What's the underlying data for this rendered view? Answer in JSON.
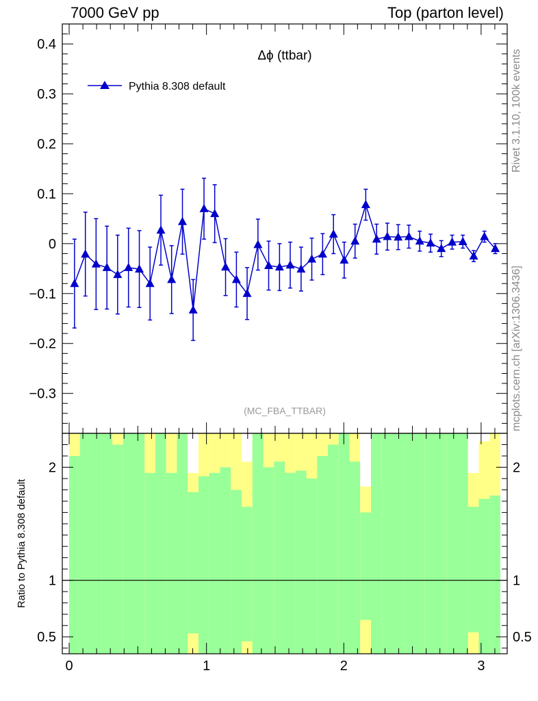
{
  "header": {
    "left": "7000 GeV pp",
    "right": "Top (parton level)"
  },
  "side": {
    "rivet": "Rivet 3.1.10,  100k events",
    "mcplots": "mcplots.cern.ch [arXiv:1306.3436]"
  },
  "chart_data": [
    {
      "type": "line",
      "title": "Δϕ (ttbar)",
      "annotation": "(MC_FBA_TTBAR)",
      "legend_position": "top-left",
      "ylim": [
        -0.38,
        0.44
      ],
      "xlim": [
        -0.05,
        3.19
      ],
      "yticks": [
        -0.3,
        -0.2,
        -0.1,
        0,
        0.1,
        0.2,
        0.3,
        0.4
      ],
      "ytick_labels": [
        "−0.3",
        "−0.2",
        "−0.1",
        "0",
        "0.1",
        "0.2",
        "0.3",
        "0.4"
      ],
      "color": "#0000cc",
      "series": [
        {
          "name": "Pythia 8.308 default",
          "x": [
            0.039,
            0.118,
            0.196,
            0.275,
            0.353,
            0.432,
            0.511,
            0.589,
            0.668,
            0.746,
            0.825,
            0.903,
            0.982,
            1.06,
            1.139,
            1.218,
            1.296,
            1.375,
            1.453,
            1.532,
            1.61,
            1.689,
            1.767,
            1.846,
            1.925,
            2.003,
            2.082,
            2.16,
            2.239,
            2.317,
            2.396,
            2.474,
            2.553,
            2.632,
            2.71,
            2.789,
            2.867,
            2.946,
            3.024,
            3.103
          ],
          "y": [
            -0.08,
            -0.021,
            -0.041,
            -0.048,
            -0.062,
            -0.048,
            -0.051,
            -0.08,
            0.027,
            -0.072,
            0.044,
            -0.133,
            0.07,
            0.06,
            -0.047,
            -0.072,
            -0.1,
            -0.002,
            -0.044,
            -0.047,
            -0.043,
            -0.051,
            -0.031,
            -0.021,
            0.019,
            -0.033,
            0.005,
            0.078,
            0.009,
            0.014,
            0.013,
            0.014,
            0.005,
            0.001,
            -0.01,
            0.003,
            0.004,
            -0.025,
            0.014,
            -0.01
          ],
          "yerr": [
            0.089,
            0.084,
            0.091,
            0.083,
            0.079,
            0.079,
            0.077,
            0.073,
            0.07,
            0.068,
            0.065,
            0.061,
            0.061,
            0.058,
            0.057,
            0.055,
            0.052,
            0.051,
            0.049,
            0.047,
            0.046,
            0.044,
            0.042,
            0.041,
            0.039,
            0.036,
            0.034,
            0.031,
            0.03,
            0.027,
            0.025,
            0.023,
            0.02,
            0.018,
            0.016,
            0.014,
            0.013,
            0.011,
            0.011,
            0.01
          ]
        }
      ]
    },
    {
      "type": "bar",
      "ylabel": "Ratio to Pythia 8.308 default",
      "ylim": [
        0.35,
        2.3
      ],
      "yticks": [
        0.5,
        1,
        2
      ],
      "ytick_labels": [
        "0.5",
        "1",
        "2"
      ],
      "xticks": [
        0,
        1,
        2,
        3
      ],
      "xtick_labels": [
        "0",
        "1",
        "2",
        "3"
      ],
      "reference": 1,
      "band_colors": {
        "inner": "#99ff99",
        "outer": "#ffff88"
      },
      "bins": [
        0.0,
        0.0785,
        0.157,
        0.2355,
        0.314,
        0.3925,
        0.471,
        0.5495,
        0.628,
        0.7065,
        0.785,
        0.8635,
        0.942,
        1.0205,
        1.099,
        1.1775,
        1.256,
        1.3345,
        1.413,
        1.4915,
        1.57,
        1.6485,
        1.727,
        1.8055,
        1.884,
        1.9625,
        2.041,
        2.1195,
        2.198,
        2.2765,
        2.355,
        2.4335,
        2.512,
        2.5905,
        2.669,
        2.7475,
        2.826,
        2.9045,
        2.983,
        3.0615,
        3.14
      ],
      "inner_lo": [
        0.35,
        0.35,
        0.35,
        0.35,
        0.35,
        0.35,
        0.35,
        0.35,
        0.35,
        0.35,
        0.35,
        0.35,
        0.35,
        0.35,
        0.35,
        0.35,
        0.35,
        0.35,
        0.35,
        0.35,
        0.35,
        0.35,
        0.35,
        0.35,
        0.35,
        0.35,
        0.35,
        0.35,
        0.35,
        0.35,
        0.35,
        0.35,
        0.35,
        0.35,
        0.35,
        0.35,
        0.35,
        0.35,
        0.35,
        0.35
      ],
      "inner_hi": [
        2.1,
        2.3,
        2.3,
        2.3,
        2.2,
        2.3,
        2.3,
        1.95,
        2.3,
        1.95,
        2.3,
        1.78,
        1.92,
        1.95,
        2.0,
        1.8,
        1.65,
        2.3,
        2.0,
        2.05,
        1.95,
        1.97,
        1.9,
        2.1,
        2.2,
        2.3,
        2.05,
        1.6,
        2.3,
        2.3,
        2.3,
        2.3,
        2.3,
        2.3,
        2.3,
        2.3,
        2.3,
        1.65,
        1.72,
        1.75
      ],
      "outer_lo": [
        0.35,
        0.35,
        0.35,
        0.35,
        0.35,
        0.35,
        0.35,
        0.35,
        0.35,
        0.35,
        0.35,
        0.35,
        0.35,
        0.35,
        0.35,
        0.35,
        0.35,
        0.35,
        0.35,
        0.35,
        0.35,
        0.35,
        0.35,
        0.35,
        0.35,
        0.35,
        0.35,
        0.35,
        0.35,
        0.35,
        0.35,
        0.35,
        0.35,
        0.35,
        0.35,
        0.35,
        0.35,
        0.35,
        0.35,
        0.35
      ],
      "outer_hi": [
        2.3,
        2.3,
        2.3,
        2.3,
        2.3,
        2.3,
        2.3,
        2.3,
        2.3,
        2.3,
        2.3,
        1.95,
        2.3,
        2.3,
        2.3,
        2.3,
        2.05,
        2.3,
        2.3,
        2.3,
        2.3,
        2.3,
        2.3,
        2.3,
        2.3,
        2.3,
        2.3,
        1.83,
        2.3,
        2.3,
        2.3,
        2.3,
        2.3,
        2.3,
        2.3,
        2.3,
        2.3,
        1.95,
        2.23,
        2.3
      ],
      "inner_gaps": [
        [
          0.35,
          0.35
        ],
        [
          0.35,
          0.35
        ],
        [
          0.35,
          0.35
        ],
        [
          0.35,
          0.35
        ],
        [
          0.35,
          0.35
        ],
        [
          0.35,
          0.35
        ],
        [
          0.35,
          0.35
        ],
        [
          0.35,
          0.35
        ],
        [
          0.35,
          0.35
        ],
        [
          0.35,
          0.35
        ],
        [
          0.35,
          0.35
        ],
        [
          0.35,
          0.53
        ],
        [
          0.35,
          0.35
        ],
        [
          0.35,
          0.35
        ],
        [
          0.35,
          0.35
        ],
        [
          0.35,
          0.35
        ],
        [
          0.35,
          0.46
        ],
        [
          0.35,
          0.35
        ],
        [
          0.35,
          0.35
        ],
        [
          0.35,
          0.35
        ],
        [
          0.35,
          0.35
        ],
        [
          0.35,
          0.35
        ],
        [
          0.35,
          0.35
        ],
        [
          0.35,
          0.35
        ],
        [
          0.35,
          0.35
        ],
        [
          0.35,
          0.35
        ],
        [
          0.35,
          0.35
        ],
        [
          0.35,
          0.65
        ],
        [
          0.35,
          0.35
        ],
        [
          0.35,
          0.35
        ],
        [
          0.35,
          0.35
        ],
        [
          0.35,
          0.35
        ],
        [
          0.35,
          0.35
        ],
        [
          0.35,
          0.35
        ],
        [
          0.35,
          0.35
        ],
        [
          0.35,
          0.35
        ],
        [
          0.35,
          0.35
        ],
        [
          0.35,
          0.54
        ],
        [
          0.35,
          0.35
        ],
        [
          0.35,
          0.35
        ]
      ]
    }
  ]
}
